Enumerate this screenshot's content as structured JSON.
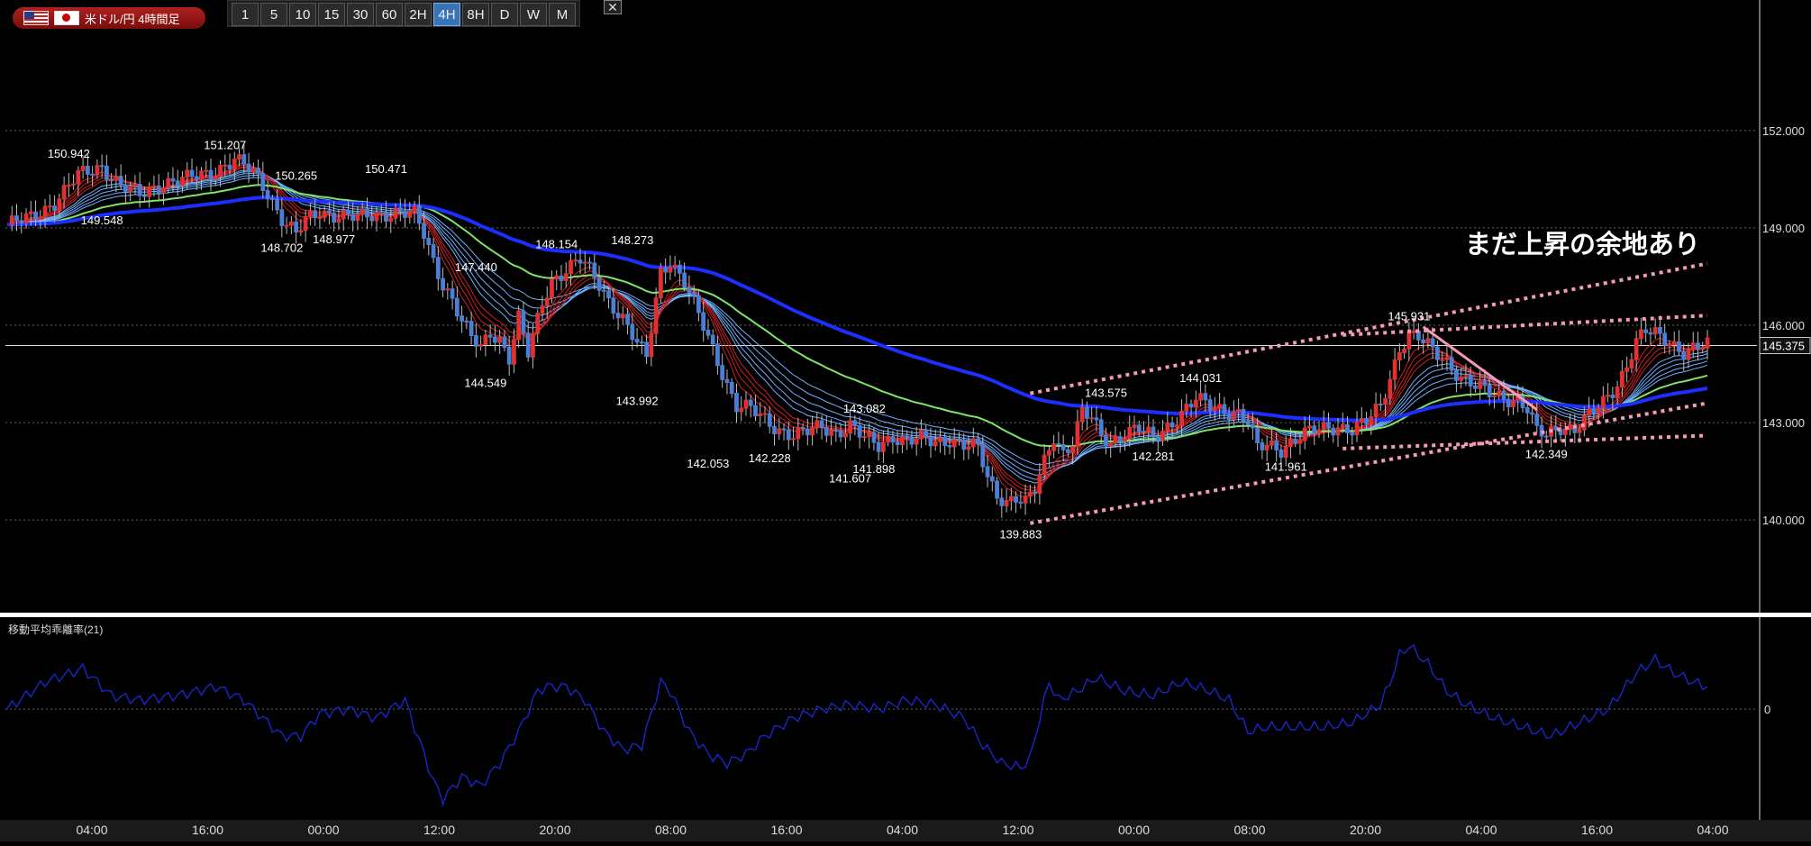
{
  "header": {
    "pair_label": "米ドル/円 4時間足",
    "timeframes": [
      "1",
      "5",
      "10",
      "15",
      "30",
      "60",
      "2H",
      "4H",
      "8H",
      "D",
      "W",
      "M"
    ],
    "active_timeframe": "4H",
    "close_label": "✕"
  },
  "annotation_text": "まだ上昇の余地あり",
  "indicator": {
    "label": "移動平均乖離率(21)"
  },
  "colors": {
    "background": "#000000",
    "candle_up": "#e03030",
    "candle_down": "#4a7fd8",
    "ma_long": "#1c2fff",
    "ma_mid": "#7fe36a",
    "ma_short": "#d02020",
    "ma_fan": "#6fb0ff",
    "trendline": "#f49ab4",
    "indicator_line": "#1a28d8"
  },
  "chart_data": {
    "type": "candlestick",
    "y_ticks": [
      "152.000",
      "149.000",
      "146.000",
      "143.000",
      "140.000"
    ],
    "ylim": [
      137.7,
      154.3
    ],
    "current_price": "145.375",
    "x_ticks": [
      "04:00",
      "16:00",
      "00:00",
      "12:00",
      "20:00",
      "08:00",
      "16:00",
      "04:00",
      "12:00",
      "00:00",
      "08:00",
      "20:00",
      "04:00",
      "16:00",
      "04:00"
    ],
    "price_labels": [
      "150.942",
      "151.207",
      "150.265",
      "150.471",
      "149.548",
      "148.702",
      "148.977",
      "148.154",
      "148.273",
      "147.440",
      "144.549",
      "143.992",
      "142.053",
      "142.228",
      "143.082",
      "141.898",
      "141.607",
      "139.883",
      "143.575",
      "142.281",
      "144.031",
      "141.961",
      "145.931",
      "142.349"
    ],
    "indicator_zero_label": "0",
    "path": [
      [
        0,
        149.1
      ],
      [
        5,
        149.3
      ],
      [
        10,
        149.8
      ],
      [
        15,
        150.6
      ],
      [
        20,
        150.9
      ],
      [
        24,
        150.3
      ],
      [
        28,
        150.0
      ],
      [
        33,
        150.4
      ],
      [
        38,
        150.5
      ],
      [
        43,
        150.7
      ],
      [
        48,
        151.1
      ],
      [
        52,
        150.7
      ],
      [
        55,
        150.1
      ],
      [
        58,
        149.3
      ],
      [
        61,
        148.8
      ],
      [
        63,
        149.2
      ],
      [
        66,
        149.5
      ],
      [
        70,
        149.4
      ],
      [
        74,
        149.3
      ],
      [
        78,
        149.4
      ],
      [
        82,
        149.5
      ],
      [
        86,
        149.4
      ],
      [
        88,
        148.8
      ],
      [
        90,
        148.0
      ],
      [
        92,
        147.3
      ],
      [
        94,
        146.8
      ],
      [
        96,
        146.1
      ],
      [
        98,
        145.6
      ],
      [
        100,
        145.3
      ],
      [
        102,
        145.8
      ],
      [
        104,
        145.6
      ],
      [
        106,
        145.0
      ],
      [
        108,
        146.2
      ],
      [
        110,
        145.1
      ],
      [
        113,
        146.7
      ],
      [
        115,
        147.4
      ],
      [
        118,
        147.7
      ],
      [
        121,
        148.0
      ],
      [
        124,
        147.5
      ],
      [
        127,
        146.8
      ],
      [
        130,
        146.2
      ],
      [
        133,
        145.4
      ],
      [
        135,
        145.0
      ],
      [
        138,
        147.7
      ],
      [
        140,
        148.0
      ],
      [
        143,
        147.3
      ],
      [
        146,
        146.3
      ],
      [
        149,
        145.3
      ],
      [
        152,
        144.2
      ],
      [
        154,
        143.5
      ],
      [
        157,
        143.4
      ],
      [
        160,
        143.1
      ],
      [
        163,
        142.8
      ],
      [
        166,
        142.6
      ],
      [
        169,
        142.7
      ],
      [
        172,
        142.9
      ],
      [
        175,
        142.7
      ],
      [
        178,
        142.9
      ],
      [
        181,
        142.5
      ],
      [
        184,
        142.3
      ],
      [
        187,
        142.6
      ],
      [
        190,
        142.4
      ],
      [
        193,
        142.5
      ],
      [
        196,
        142.4
      ],
      [
        199,
        142.5
      ],
      [
        202,
        142.3
      ],
      [
        205,
        142.2
      ],
      [
        207,
        141.3
      ],
      [
        209,
        140.8
      ],
      [
        211,
        140.6
      ],
      [
        213,
        140.7
      ],
      [
        215,
        140.5
      ],
      [
        217,
        140.9
      ],
      [
        219,
        141.8
      ],
      [
        221,
        142.6
      ],
      [
        223,
        142.1
      ],
      [
        225,
        142.4
      ],
      [
        227,
        143.3
      ],
      [
        229,
        143.1
      ],
      [
        231,
        142.6
      ],
      [
        233,
        142.4
      ],
      [
        236,
        142.7
      ],
      [
        239,
        142.8
      ],
      [
        242,
        142.5
      ],
      [
        245,
        142.9
      ],
      [
        248,
        143.3
      ],
      [
        251,
        143.7
      ],
      [
        254,
        143.5
      ],
      [
        257,
        143.4
      ],
      [
        260,
        143.3
      ],
      [
        262,
        143.0
      ],
      [
        264,
        142.2
      ],
      [
        266,
        142.3
      ],
      [
        269,
        142.2
      ],
      [
        272,
        142.5
      ],
      [
        275,
        142.7
      ],
      [
        278,
        142.8
      ],
      [
        281,
        142.9
      ],
      [
        284,
        142.8
      ],
      [
        287,
        143.0
      ],
      [
        290,
        143.5
      ],
      [
        292,
        144.4
      ],
      [
        294,
        145.3
      ],
      [
        296,
        145.7
      ],
      [
        298,
        145.6
      ],
      [
        301,
        145.2
      ],
      [
        304,
        144.9
      ],
      [
        307,
        144.4
      ],
      [
        310,
        144.1
      ],
      [
        313,
        143.9
      ],
      [
        316,
        143.8
      ],
      [
        319,
        143.7
      ],
      [
        321,
        143.4
      ],
      [
        323,
        142.7
      ],
      [
        325,
        142.6
      ],
      [
        328,
        142.9
      ],
      [
        331,
        142.8
      ],
      [
        334,
        143.2
      ],
      [
        337,
        143.6
      ],
      [
        340,
        144.2
      ],
      [
        342,
        144.8
      ],
      [
        344,
        145.5
      ],
      [
        346,
        145.8
      ],
      [
        348,
        145.7
      ],
      [
        351,
        145.5
      ],
      [
        354,
        145.2
      ],
      [
        357,
        145.3
      ],
      [
        359,
        145.38
      ]
    ],
    "indicator_path": [
      [
        0,
        0.0
      ],
      [
        8,
        0.6
      ],
      [
        16,
        0.9
      ],
      [
        22,
        0.3
      ],
      [
        28,
        0.2
      ],
      [
        36,
        0.3
      ],
      [
        44,
        0.5
      ],
      [
        50,
        0.2
      ],
      [
        58,
        -0.6
      ],
      [
        62,
        -0.6
      ],
      [
        66,
        -0.1
      ],
      [
        72,
        0.0
      ],
      [
        78,
        -0.2
      ],
      [
        84,
        0.2
      ],
      [
        88,
        -1.0
      ],
      [
        90,
        -1.6
      ],
      [
        92,
        -2.0
      ],
      [
        96,
        -1.5
      ],
      [
        100,
        -1.7
      ],
      [
        104,
        -1.2
      ],
      [
        108,
        -0.5
      ],
      [
        112,
        0.4
      ],
      [
        114,
        0.5
      ],
      [
        118,
        0.5
      ],
      [
        122,
        0.2
      ],
      [
        126,
        -0.5
      ],
      [
        130,
        -0.9
      ],
      [
        134,
        -0.8
      ],
      [
        138,
        0.6
      ],
      [
        140,
        0.4
      ],
      [
        144,
        -0.5
      ],
      [
        148,
        -1.0
      ],
      [
        152,
        -1.2
      ],
      [
        156,
        -1.0
      ],
      [
        160,
        -0.6
      ],
      [
        166,
        -0.2
      ],
      [
        172,
        0.0
      ],
      [
        178,
        0.1
      ],
      [
        184,
        0.0
      ],
      [
        190,
        0.2
      ],
      [
        196,
        0.1
      ],
      [
        202,
        -0.2
      ],
      [
        206,
        -0.8
      ],
      [
        210,
        -1.2
      ],
      [
        214,
        -1.3
      ],
      [
        216,
        -1.1
      ],
      [
        218,
        -0.2
      ],
      [
        220,
        0.6
      ],
      [
        222,
        0.2
      ],
      [
        226,
        0.4
      ],
      [
        230,
        0.7
      ],
      [
        236,
        0.4
      ],
      [
        242,
        0.3
      ],
      [
        248,
        0.6
      ],
      [
        254,
        0.4
      ],
      [
        258,
        0.2
      ],
      [
        262,
        -0.5
      ],
      [
        266,
        -0.4
      ],
      [
        272,
        -0.4
      ],
      [
        278,
        -0.4
      ],
      [
        284,
        -0.3
      ],
      [
        290,
        0.1
      ],
      [
        292,
        0.6
      ],
      [
        294,
        1.2
      ],
      [
        296,
        1.4
      ],
      [
        300,
        1.0
      ],
      [
        304,
        0.4
      ],
      [
        308,
        0.1
      ],
      [
        314,
        -0.2
      ],
      [
        320,
        -0.4
      ],
      [
        326,
        -0.6
      ],
      [
        332,
        -0.3
      ],
      [
        338,
        0.0
      ],
      [
        344,
        0.8
      ],
      [
        348,
        1.1
      ],
      [
        352,
        0.8
      ],
      [
        356,
        0.6
      ],
      [
        359,
        0.5
      ]
    ]
  }
}
